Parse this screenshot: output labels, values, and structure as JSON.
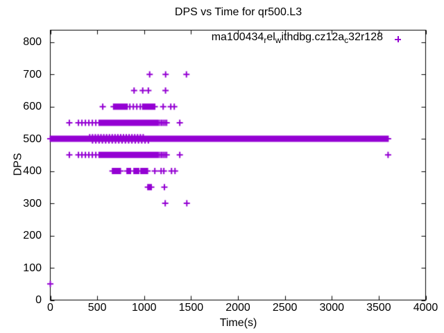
{
  "chart_data": {
    "type": "scatter",
    "title": "DPS vs Time for qr500.L3",
    "xlabel": "Time(s)",
    "ylabel": "DPS",
    "xlim": [
      0,
      4000
    ],
    "ylim": [
      0,
      837
    ],
    "xticks": [
      0,
      500,
      1000,
      1500,
      2000,
      2500,
      3000,
      3500,
      4000
    ],
    "yticks": [
      0,
      100,
      200,
      300,
      400,
      500,
      600,
      700,
      800
    ],
    "grid": false,
    "background_color": "#ffffff",
    "border_color": "#000000",
    "legend": {
      "position": "top-right-inside",
      "entries": [
        {
          "label": "ma100434_rel_withdbg.cz12a_c32r128",
          "marker": "plus",
          "color": "#9400d3"
        }
      ]
    },
    "series": [
      {
        "name": "ma100434_rel_withdbg.cz12a_c32r128",
        "marker": "plus",
        "color": "#9400d3",
        "points": [
          [
            0,
            50
          ],
          [
            203,
            550
          ],
          [
            203,
            450
          ],
          [
            1380,
            550
          ],
          [
            1380,
            450
          ],
          [
            3600,
            450
          ],
          [
            559,
            600
          ],
          [
            1203,
            600
          ],
          [
            1284,
            600
          ],
          [
            1321,
            600
          ],
          [
            893,
            650
          ],
          [
            985,
            650
          ],
          [
            1045,
            650
          ],
          [
            1228,
            650
          ],
          [
            1059,
            700
          ],
          [
            1229,
            700
          ],
          [
            1451,
            700
          ],
          [
            1114,
            400
          ],
          [
            1181,
            400
          ],
          [
            1210,
            400
          ],
          [
            1292,
            400
          ],
          [
            1329,
            400
          ],
          [
            1216,
            350
          ],
          [
            1225,
            300
          ],
          [
            1455,
            300
          ]
        ],
        "runs": [
          {
            "dps": 500,
            "from": 0,
            "to": 3600,
            "step": 4
          },
          {
            "dps": 505,
            "from": 420,
            "to": 1000,
            "step": 30
          },
          {
            "dps": 495,
            "from": 450,
            "to": 1050,
            "step": 35
          },
          {
            "dps": 550,
            "from": 300,
            "to": 515,
            "step": 37
          },
          {
            "dps": 550,
            "from": 520,
            "to": 1135,
            "step": 5
          },
          {
            "dps": 550,
            "from": 1150,
            "to": 1240,
            "step": 18
          },
          {
            "dps": 450,
            "from": 300,
            "to": 515,
            "step": 37
          },
          {
            "dps": 450,
            "from": 520,
            "to": 1135,
            "step": 5
          },
          {
            "dps": 450,
            "from": 1150,
            "to": 1240,
            "step": 18
          },
          {
            "dps": 600,
            "from": 675,
            "to": 820,
            "step": 12
          },
          {
            "dps": 600,
            "from": 848,
            "to": 960,
            "step": 37
          },
          {
            "dps": 600,
            "from": 985,
            "to": 1115,
            "step": 8
          },
          {
            "dps": 400,
            "from": 663,
            "to": 760,
            "step": 14
          },
          {
            "dps": 400,
            "from": 818,
            "to": 855,
            "step": 12
          },
          {
            "dps": 400,
            "from": 892,
            "to": 945,
            "step": 10
          },
          {
            "dps": 400,
            "from": 966,
            "to": 1040,
            "step": 7
          },
          {
            "dps": 350,
            "from": 1040,
            "to": 1076,
            "step": 6
          }
        ]
      }
    ]
  }
}
